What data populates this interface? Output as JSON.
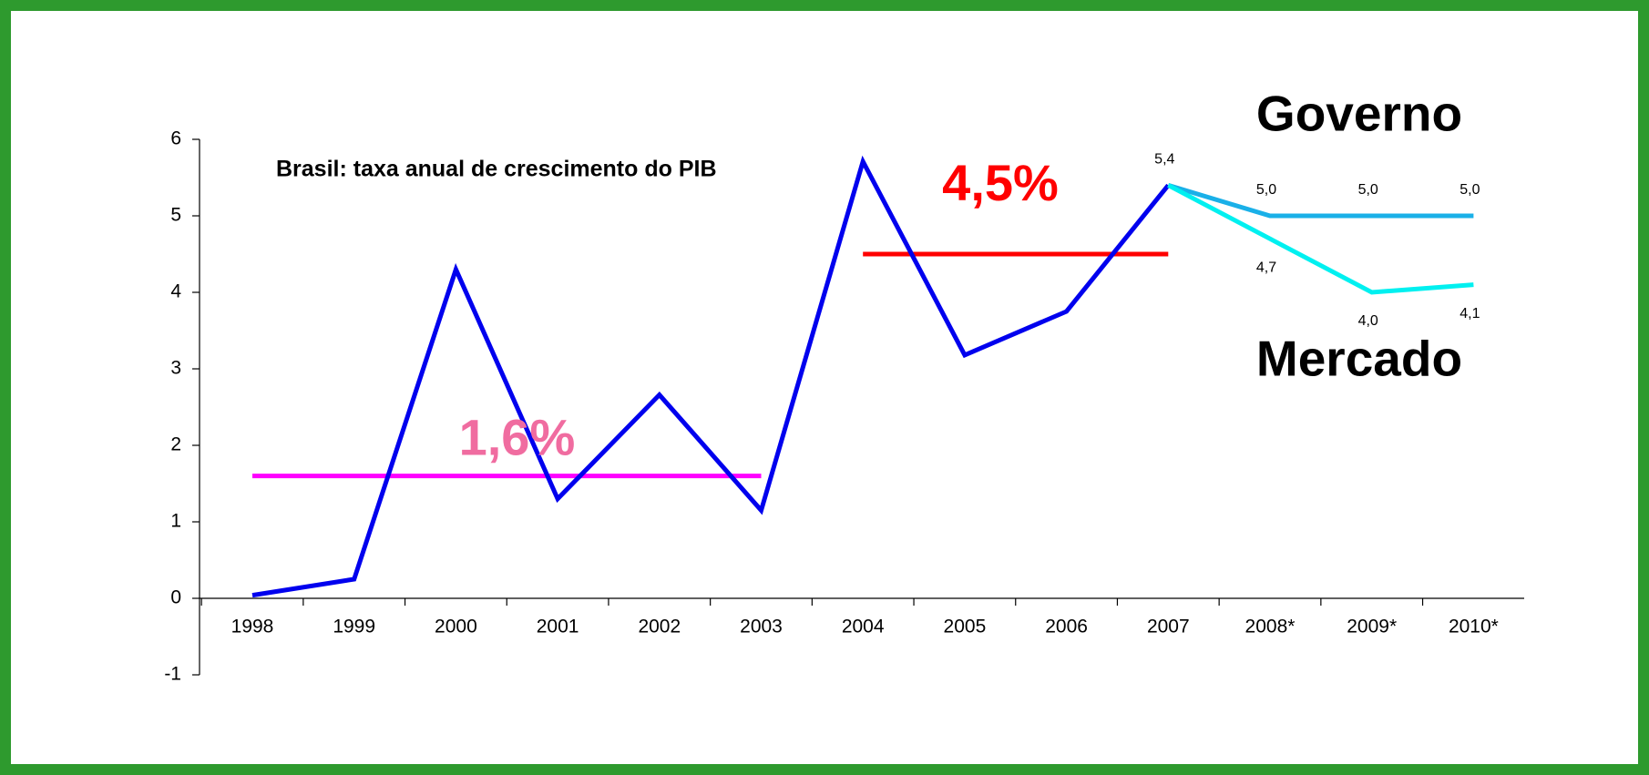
{
  "chart_data": {
    "type": "line",
    "title": "Brasil: taxa anual de crescimento do PIB",
    "categories": [
      "1998",
      "1999",
      "2000",
      "2001",
      "2002",
      "2003",
      "2004",
      "2005",
      "2006",
      "2007",
      "2008*",
      "2009*",
      "2010*"
    ],
    "series": [
      {
        "color": "#0000ee",
        "values": [
          0.04,
          0.25,
          4.3,
          1.3,
          2.66,
          1.15,
          5.71,
          3.18,
          3.75,
          5.4,
          null,
          null,
          null
        ],
        "value_labels": [
          null,
          null,
          null,
          null,
          null,
          null,
          null,
          null,
          null,
          "5,4",
          null,
          null,
          null
        ],
        "label_pos": "above"
      },
      {
        "name": "Governo",
        "color": "#1ab0e8",
        "values": [
          null,
          null,
          null,
          null,
          null,
          null,
          null,
          null,
          null,
          5.4,
          5.0,
          5.0,
          5.0
        ],
        "value_labels": [
          null,
          null,
          null,
          null,
          null,
          null,
          null,
          null,
          null,
          null,
          "5,0",
          "5,0",
          "5,0"
        ],
        "label_pos": "above"
      },
      {
        "name": "Mercado",
        "color": "#00f0f0",
        "values": [
          null,
          null,
          null,
          null,
          null,
          null,
          null,
          null,
          null,
          5.4,
          4.7,
          4.0,
          4.1
        ],
        "value_labels": [
          null,
          null,
          null,
          null,
          null,
          null,
          null,
          null,
          null,
          null,
          "4,7",
          "4,0",
          "4,1"
        ],
        "label_pos": "below"
      }
    ],
    "reference_lines": [
      {
        "value": 1.6,
        "label": "1,6%",
        "from": "1998",
        "to": "2003",
        "color": "#ff00ff",
        "label_color": "#f06ca0"
      },
      {
        "value": 4.5,
        "label": "4,5%",
        "from": "2004",
        "to": "2007",
        "color": "#ff0000",
        "label_color": "#ff0000"
      }
    ],
    "ylim": [
      -1,
      6
    ],
    "yticks": [
      -1,
      0,
      1,
      2,
      3,
      4,
      5,
      6
    ],
    "grid": false
  }
}
